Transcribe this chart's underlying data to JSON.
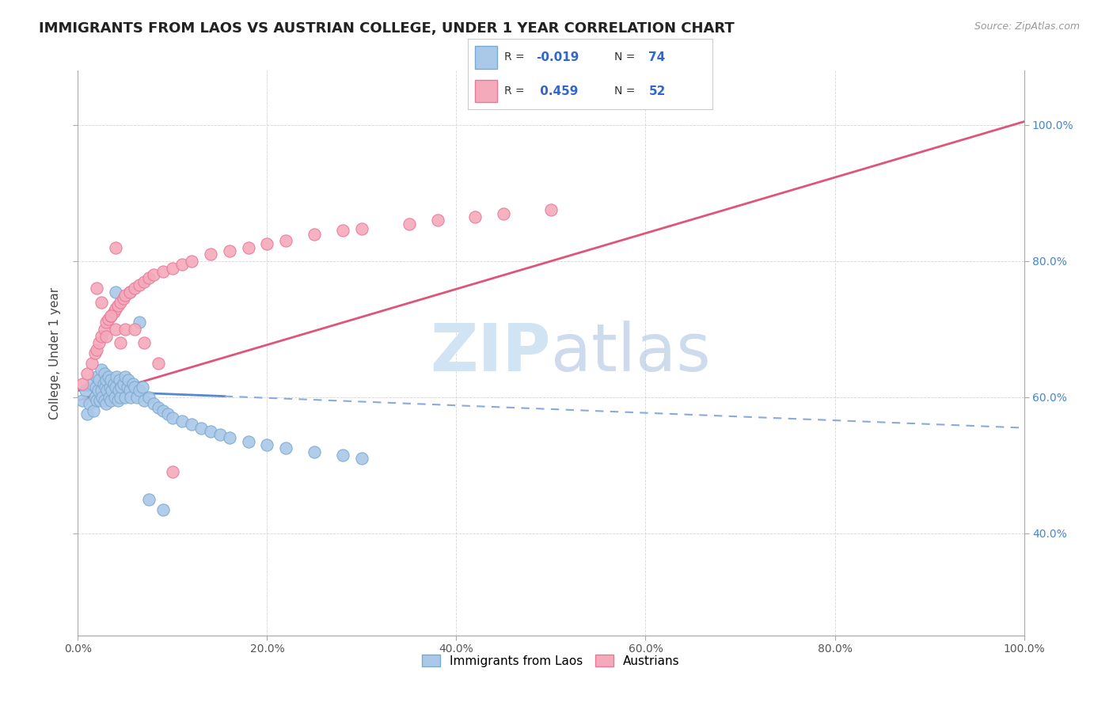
{
  "title": "IMMIGRANTS FROM LAOS VS AUSTRIAN COLLEGE, UNDER 1 YEAR CORRELATION CHART",
  "source": "Source: ZipAtlas.com",
  "ylabel": "College, Under 1 year",
  "x_tick_labels": [
    "0.0%",
    "20.0%",
    "40.0%",
    "60.0%",
    "80.0%",
    "100.0%"
  ],
  "y_tick_labels_right": [
    "40.0%",
    "60.0%",
    "80.0%",
    "100.0%"
  ],
  "xlim": [
    0.0,
    1.0
  ],
  "ylim": [
    0.25,
    1.08
  ],
  "legend_label1": "Immigrants from Laos",
  "legend_label2": "Austrians",
  "R1": "-0.019",
  "N1": "74",
  "R2": "0.459",
  "N2": "52",
  "color_blue": "#aac8e8",
  "color_pink": "#f5aabb",
  "edge_blue": "#7aaad0",
  "edge_pink": "#e8789a",
  "line_blue_solid": "#5588cc",
  "line_blue_dash": "#88aadd",
  "line_pink": "#dd5577",
  "watermark_color": "#d0e4f4",
  "blue_scatter_x": [
    0.005,
    0.008,
    0.01,
    0.012,
    0.015,
    0.016,
    0.018,
    0.019,
    0.02,
    0.02,
    0.021,
    0.022,
    0.023,
    0.025,
    0.025,
    0.026,
    0.027,
    0.028,
    0.028,
    0.029,
    0.03,
    0.03,
    0.031,
    0.032,
    0.033,
    0.034,
    0.035,
    0.035,
    0.036,
    0.038,
    0.039,
    0.04,
    0.041,
    0.042,
    0.043,
    0.044,
    0.045,
    0.046,
    0.048,
    0.05,
    0.05,
    0.052,
    0.053,
    0.055,
    0.056,
    0.058,
    0.06,
    0.062,
    0.065,
    0.068,
    0.07,
    0.075,
    0.08,
    0.085,
    0.09,
    0.095,
    0.1,
    0.11,
    0.12,
    0.13,
    0.14,
    0.15,
    0.16,
    0.18,
    0.2,
    0.22,
    0.25,
    0.28,
    0.3,
    0.04,
    0.055,
    0.065,
    0.075,
    0.09
  ],
  "blue_scatter_y": [
    0.595,
    0.61,
    0.575,
    0.59,
    0.62,
    0.58,
    0.6,
    0.615,
    0.63,
    0.595,
    0.61,
    0.625,
    0.595,
    0.64,
    0.61,
    0.6,
    0.62,
    0.635,
    0.595,
    0.615,
    0.625,
    0.59,
    0.61,
    0.63,
    0.6,
    0.615,
    0.625,
    0.595,
    0.61,
    0.62,
    0.6,
    0.615,
    0.63,
    0.595,
    0.61,
    0.625,
    0.6,
    0.615,
    0.62,
    0.63,
    0.6,
    0.615,
    0.625,
    0.61,
    0.6,
    0.62,
    0.615,
    0.6,
    0.61,
    0.615,
    0.595,
    0.6,
    0.59,
    0.585,
    0.58,
    0.575,
    0.57,
    0.565,
    0.56,
    0.555,
    0.55,
    0.545,
    0.54,
    0.535,
    0.53,
    0.525,
    0.52,
    0.515,
    0.51,
    0.755,
    0.755,
    0.71,
    0.45,
    0.435
  ],
  "pink_scatter_x": [
    0.005,
    0.01,
    0.015,
    0.018,
    0.02,
    0.022,
    0.025,
    0.028,
    0.03,
    0.032,
    0.035,
    0.038,
    0.04,
    0.042,
    0.045,
    0.048,
    0.05,
    0.055,
    0.06,
    0.065,
    0.07,
    0.075,
    0.08,
    0.09,
    0.1,
    0.11,
    0.12,
    0.14,
    0.16,
    0.18,
    0.2,
    0.22,
    0.25,
    0.28,
    0.3,
    0.35,
    0.38,
    0.42,
    0.45,
    0.5,
    0.02,
    0.025,
    0.03,
    0.035,
    0.04,
    0.045,
    0.05,
    0.06,
    0.07,
    0.085,
    0.1,
    0.04
  ],
  "pink_scatter_y": [
    0.62,
    0.635,
    0.65,
    0.665,
    0.67,
    0.68,
    0.69,
    0.7,
    0.71,
    0.715,
    0.72,
    0.725,
    0.73,
    0.735,
    0.74,
    0.745,
    0.75,
    0.755,
    0.76,
    0.765,
    0.77,
    0.775,
    0.78,
    0.785,
    0.79,
    0.795,
    0.8,
    0.81,
    0.815,
    0.82,
    0.825,
    0.83,
    0.84,
    0.845,
    0.848,
    0.855,
    0.86,
    0.865,
    0.87,
    0.875,
    0.76,
    0.74,
    0.69,
    0.72,
    0.7,
    0.68,
    0.7,
    0.7,
    0.68,
    0.65,
    0.49,
    0.82
  ],
  "title_fontsize": 13,
  "axis_label_fontsize": 11,
  "tick_fontsize": 10,
  "source_fontsize": 9
}
